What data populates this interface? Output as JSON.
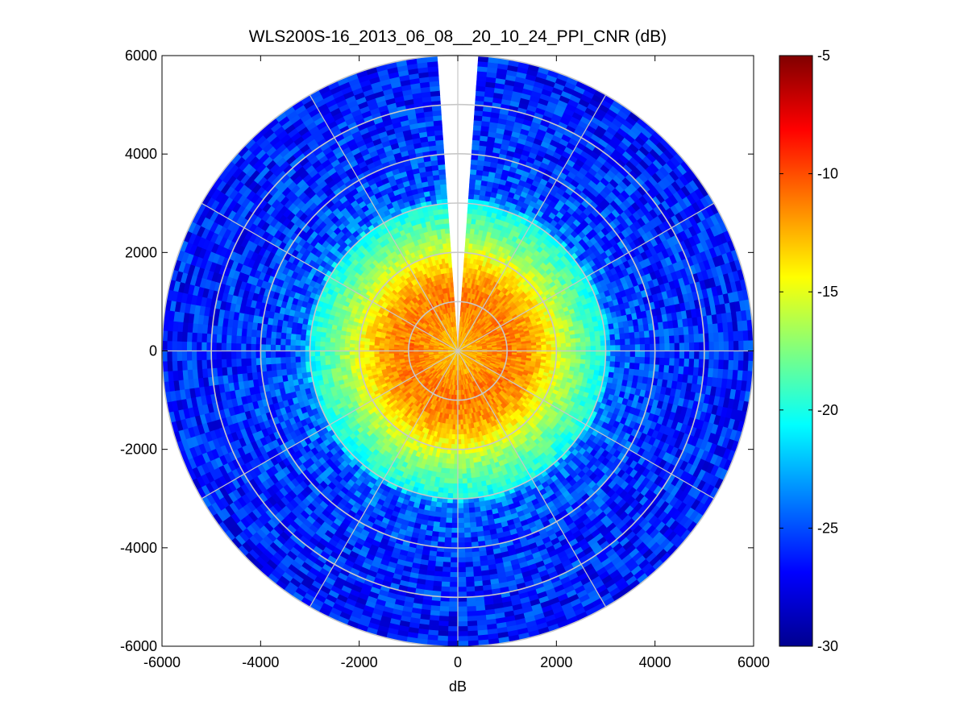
{
  "chart_data": {
    "type": "heatmap",
    "plot_kind": "polar-ppi",
    "title": "WLS200S-16_2013_06_08__20_10_24_PPI_CNR (dB)",
    "xlabel": "dB",
    "ylabel": "",
    "xlim": [
      -6000,
      6000
    ],
    "ylim": [
      -6000,
      6000
    ],
    "x_ticks": [
      -6000,
      -4000,
      -2000,
      0,
      2000,
      4000,
      6000
    ],
    "y_ticks": [
      6000,
      4000,
      2000,
      0,
      -2000,
      -4000,
      -6000
    ],
    "x_tick_labels": [
      "-6000",
      "-4000",
      "-2000",
      "0",
      "2000",
      "4000",
      "6000"
    ],
    "y_tick_labels": [
      "6000",
      "4000",
      "2000",
      "0",
      "-2000",
      "-4000",
      "-6000"
    ],
    "max_range": 6000,
    "range_rings": [
      1000,
      2000,
      3000,
      4000,
      5000,
      6000
    ],
    "radial_spokes_deg": [
      0,
      30,
      60,
      90,
      120,
      150,
      180,
      210,
      240,
      270,
      300,
      330
    ],
    "blank_sector_deg": [
      -4,
      4
    ],
    "grid": true,
    "colormap": "jet",
    "colorbar": {
      "clim": [
        -30,
        -5
      ],
      "ticks": [
        -5,
        -10,
        -15,
        -20,
        -25,
        -30
      ],
      "tick_labels": [
        "-5",
        "-10",
        "-15",
        "-20",
        "-25",
        "-30"
      ],
      "placement": "right"
    },
    "radial_profile": {
      "range_m": [
        0,
        500,
        1000,
        1500,
        2000,
        2500,
        3000,
        3100,
        3500,
        4000,
        4500,
        5000,
        5500,
        6000
      ],
      "cnr_db": [
        -13,
        -12,
        -11,
        -12,
        -15,
        -18,
        -20.5,
        -24,
        -25,
        -25.5,
        -25.8,
        -26,
        -26.2,
        -26.3
      ]
    },
    "background_color": "#ffffff",
    "grid_color": "#c8c8c8"
  }
}
